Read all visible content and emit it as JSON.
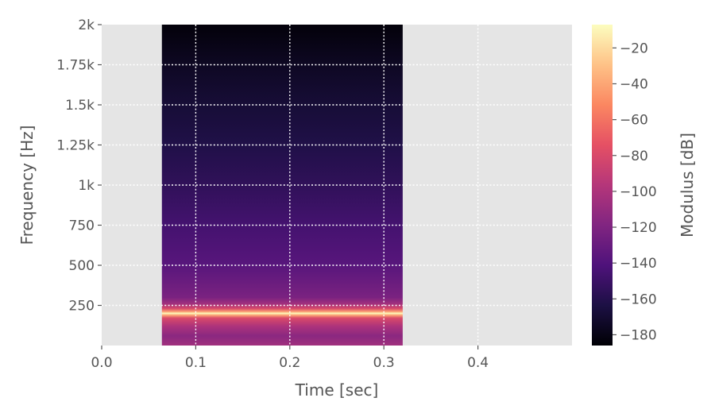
{
  "chart_data": {
    "type": "heatmap",
    "title": "",
    "xlabel": "Time [sec]",
    "ylabel": "Frequency [Hz]",
    "xlim": [
      0.0,
      0.5
    ],
    "ylim": [
      0,
      2000
    ],
    "x_ticks": [
      0.0,
      0.1,
      0.2,
      0.3,
      0.4
    ],
    "x_tick_labels": [
      "0.0",
      "0.1",
      "0.2",
      "0.3",
      "0.4"
    ],
    "y_ticks": [
      250,
      500,
      750,
      1000,
      1250,
      1500,
      1750,
      2000
    ],
    "y_tick_labels": [
      "250",
      "500",
      "750",
      "1k",
      "1.25k",
      "1.5k",
      "1.75k",
      "2k"
    ],
    "grid": true,
    "colormap": "magma",
    "colorbar": {
      "label": "Modulus [dB]",
      "range": [
        -186,
        -7
      ],
      "ticks": [
        -20,
        -40,
        -60,
        -80,
        -100,
        -120,
        -140,
        -160,
        -180
      ],
      "tick_labels": [
        "−20",
        "−40",
        "−60",
        "−80",
        "−100",
        "−120",
        "−140",
        "−160",
        "−180"
      ]
    },
    "spectrogram": {
      "t_start": 0.064,
      "t_end": 0.32,
      "f_min": 0,
      "f_max": 2000,
      "tone_frequency": 200,
      "level_profile": [
        {
          "f": 0,
          "db": -105
        },
        {
          "f": 60,
          "db": -115
        },
        {
          "f": 120,
          "db": -100
        },
        {
          "f": 170,
          "db": -80
        },
        {
          "f": 190,
          "db": -40
        },
        {
          "f": 200,
          "db": -7
        },
        {
          "f": 210,
          "db": -40
        },
        {
          "f": 230,
          "db": -80
        },
        {
          "f": 260,
          "db": -105
        },
        {
          "f": 300,
          "db": -122
        },
        {
          "f": 500,
          "db": -137
        },
        {
          "f": 750,
          "db": -146
        },
        {
          "f": 1000,
          "db": -155
        },
        {
          "f": 1250,
          "db": -162
        },
        {
          "f": 1500,
          "db": -168
        },
        {
          "f": 1750,
          "db": -175
        },
        {
          "f": 2000,
          "db": -184
        }
      ]
    },
    "colors": {
      "plot_background": "#e5e5e5",
      "grid": "#ffffff",
      "text": "#555555",
      "magma_stops": [
        "#000004",
        "#1c1044",
        "#4f127b",
        "#812581",
        "#b5367a",
        "#e55064",
        "#fb8761",
        "#fec287",
        "#fcfdbf"
      ]
    }
  }
}
